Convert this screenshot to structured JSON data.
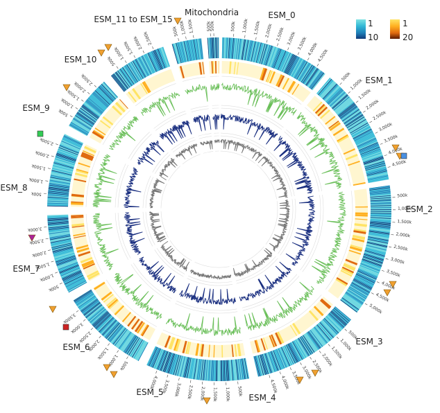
{
  "figure": {
    "chromosomes": [
      {
        "id": "ESM_0",
        "label": "ESM_0",
        "ticks": [
          "500k",
          "1,000k",
          "1,500k",
          "2,000k",
          "2,500k",
          "3,000k",
          "3,500k",
          "4,000k",
          "4,500k"
        ]
      },
      {
        "id": "ESM_1",
        "label": "ESM_1",
        "ticks": [
          "500k",
          "1,000k",
          "1,500k",
          "2,000k",
          "2,500k",
          "3,000k",
          "3,500k",
          "4,000k",
          "4,500k"
        ]
      },
      {
        "id": "ESM_2",
        "label": "ESM_2",
        "ticks": [
          "500k",
          "1,000k",
          "1,500k",
          "2,000k",
          "2,500k",
          "3,000k",
          "3,500k",
          "4,000k",
          "4,500k",
          "5,000k"
        ]
      },
      {
        "id": "ESM_3",
        "label": "ESM_3",
        "ticks": [
          "500k",
          "1,000k",
          "1,500k",
          "2,000k",
          "2,500k",
          "3,000k",
          "3,500k",
          "4,000k",
          "4,500k"
        ]
      },
      {
        "id": "ESM_4",
        "label": "ESM_4",
        "ticks": [
          "500k",
          "1,000k",
          "1,500k",
          "2,000k",
          "2,500k",
          "3,000k",
          "3,500k",
          "4,000k"
        ]
      },
      {
        "id": "ESM_5",
        "label": "ESM_5",
        "ticks": [
          "500k",
          "1,000k",
          "1,500k",
          "2,000k",
          "2,500k",
          "3,000k",
          "3,500k"
        ]
      },
      {
        "id": "ESM_6",
        "label": "ESM_6",
        "ticks": [
          "500k",
          "1,000k",
          "1,500k",
          "2,000k",
          "2,500k",
          "3,000k"
        ]
      },
      {
        "id": "ESM_7",
        "label": "ESM_7",
        "ticks": [
          "500k",
          "1,000k",
          "1,500k",
          "2,000k",
          "2,500k"
        ]
      },
      {
        "id": "ESM_8",
        "label": "ESM_8",
        "ticks": [
          "500k",
          "1,000k",
          "1,500k",
          "2,000k",
          "2,500k"
        ]
      },
      {
        "id": "ESM_9",
        "label": "ESM_9",
        "ticks": [
          "500k",
          "1,000k",
          "1,500k",
          "2,000k",
          "2,500k"
        ]
      },
      {
        "id": "ESM_10",
        "label": "ESM_10",
        "ticks": [
          "500k",
          "1,000k",
          "1,500k"
        ]
      },
      {
        "id": "ESM_11_15",
        "label": "ESM_11 to ESM_15",
        "ticks": [
          "500k",
          "500k"
        ]
      },
      {
        "id": "MT",
        "label": "Mitochondria",
        "ticks": []
      }
    ],
    "legend": {
      "blue_scale": {
        "min": "1",
        "max": "10",
        "colors": [
          "#7fe3e3",
          "#31b8d6",
          "#1f7fb8",
          "#113a79"
        ]
      },
      "orange_scale": {
        "min": "1",
        "max": "20",
        "colors": [
          "#ffe466",
          "#ffb020",
          "#e06a10",
          "#5a1a00"
        ]
      }
    },
    "colors": {
      "heat_blue": "#2bb0d4",
      "heat_orange": "#f5a623",
      "green_line": "#6abf59",
      "navy_line": "#1a2f80",
      "grey_line": "#777777",
      "marker_orange": "#f0a030",
      "marker_green": "#33cc55",
      "marker_red": "#cc2222",
      "marker_purple": "#aa2299",
      "marker_blue": "#4a90e2"
    }
  }
}
